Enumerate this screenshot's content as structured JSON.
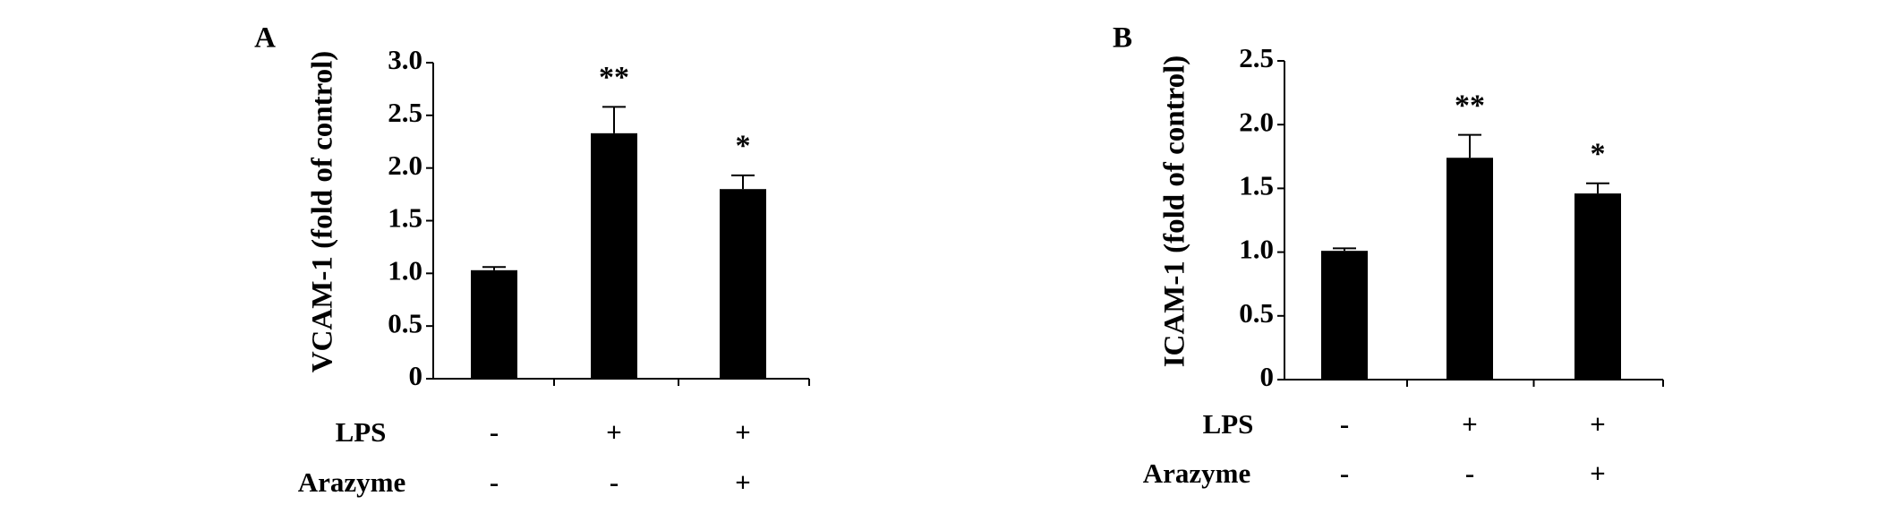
{
  "chart_data": [
    {
      "type": "bar",
      "panel_label": "A",
      "ylabel": "VCAM-1 (fold of control)",
      "categories": [
        null,
        null,
        null
      ],
      "values": [
        1.03,
        2.33,
        1.8
      ],
      "errors": [
        0.03,
        0.25,
        0.13
      ],
      "annotations": [
        null,
        "**",
        "*"
      ],
      "color": "#000000",
      "conditions": [
        {
          "name": "LPS",
          "values": [
            "-",
            "+",
            "+"
          ]
        },
        {
          "name": "Arazyme",
          "values": [
            "-",
            "-",
            "+"
          ]
        }
      ],
      "ylim": [
        0,
        3
      ],
      "yticks": [
        0,
        0.5,
        {
          "value": 1,
          "label": "1.0"
        },
        1.5,
        {
          "value": 2,
          "label": "2.0"
        },
        2.5,
        {
          "value": 3,
          "label": "3.0"
        }
      ]
    },
    {
      "type": "bar",
      "panel_label": "B",
      "ylabel": "ICAM-1 (fold of control)",
      "categories": [
        null,
        null,
        null
      ],
      "values": [
        1.01,
        1.74,
        1.46
      ],
      "errors": [
        0.02,
        0.18,
        0.08
      ],
      "annotations": [
        null,
        "**",
        "*"
      ],
      "color": "#000000",
      "conditions": [
        {
          "name": "LPS",
          "values": [
            "-",
            "+",
            "+"
          ]
        },
        {
          "name": "Arazyme",
          "values": [
            "-",
            "-",
            "+"
          ]
        }
      ],
      "ylim": [
        0,
        2.5
      ],
      "yticks": [
        0,
        0.5,
        {
          "value": 1,
          "label": "1.0"
        },
        1.5,
        {
          "value": 2,
          "label": "2.0"
        },
        2.5
      ]
    }
  ]
}
